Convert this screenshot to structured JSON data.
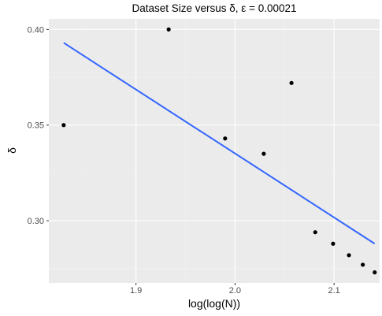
{
  "chart_data": {
    "type": "scatter",
    "title": "Dataset Size versus δ, ε = 0.00021",
    "xlabel": "log(log(N))",
    "ylabel": "δ",
    "xlim": [
      1.812,
      2.146
    ],
    "ylim": [
      0.2675,
      0.4055
    ],
    "x_ticks": [
      1.9,
      2.0,
      2.1
    ],
    "x_tick_labels": [
      "1.9",
      "2.0",
      "2.1"
    ],
    "y_ticks": [
      0.3,
      0.35,
      0.4
    ],
    "y_tick_labels": [
      "0.30",
      "0.35",
      "0.40"
    ],
    "grid": true,
    "legend": "none",
    "points": [
      {
        "x": 1.827,
        "y": 0.35
      },
      {
        "x": 1.933,
        "y": 0.4
      },
      {
        "x": 1.99,
        "y": 0.343
      },
      {
        "x": 2.029,
        "y": 0.335
      },
      {
        "x": 2.057,
        "y": 0.372
      },
      {
        "x": 2.081,
        "y": 0.294
      },
      {
        "x": 2.099,
        "y": 0.288
      },
      {
        "x": 2.115,
        "y": 0.282
      },
      {
        "x": 2.129,
        "y": 0.277
      },
      {
        "x": 2.141,
        "y": 0.273
      }
    ],
    "trend_line": {
      "x": [
        1.827,
        2.141
      ],
      "y": [
        0.393,
        0.288
      ]
    },
    "colors": {
      "panel_background": "#ebebeb",
      "grid_major": "#ffffff",
      "grid_minor": "#f2f2f2",
      "points": "#000000",
      "trend_line": "#3366ff"
    }
  }
}
